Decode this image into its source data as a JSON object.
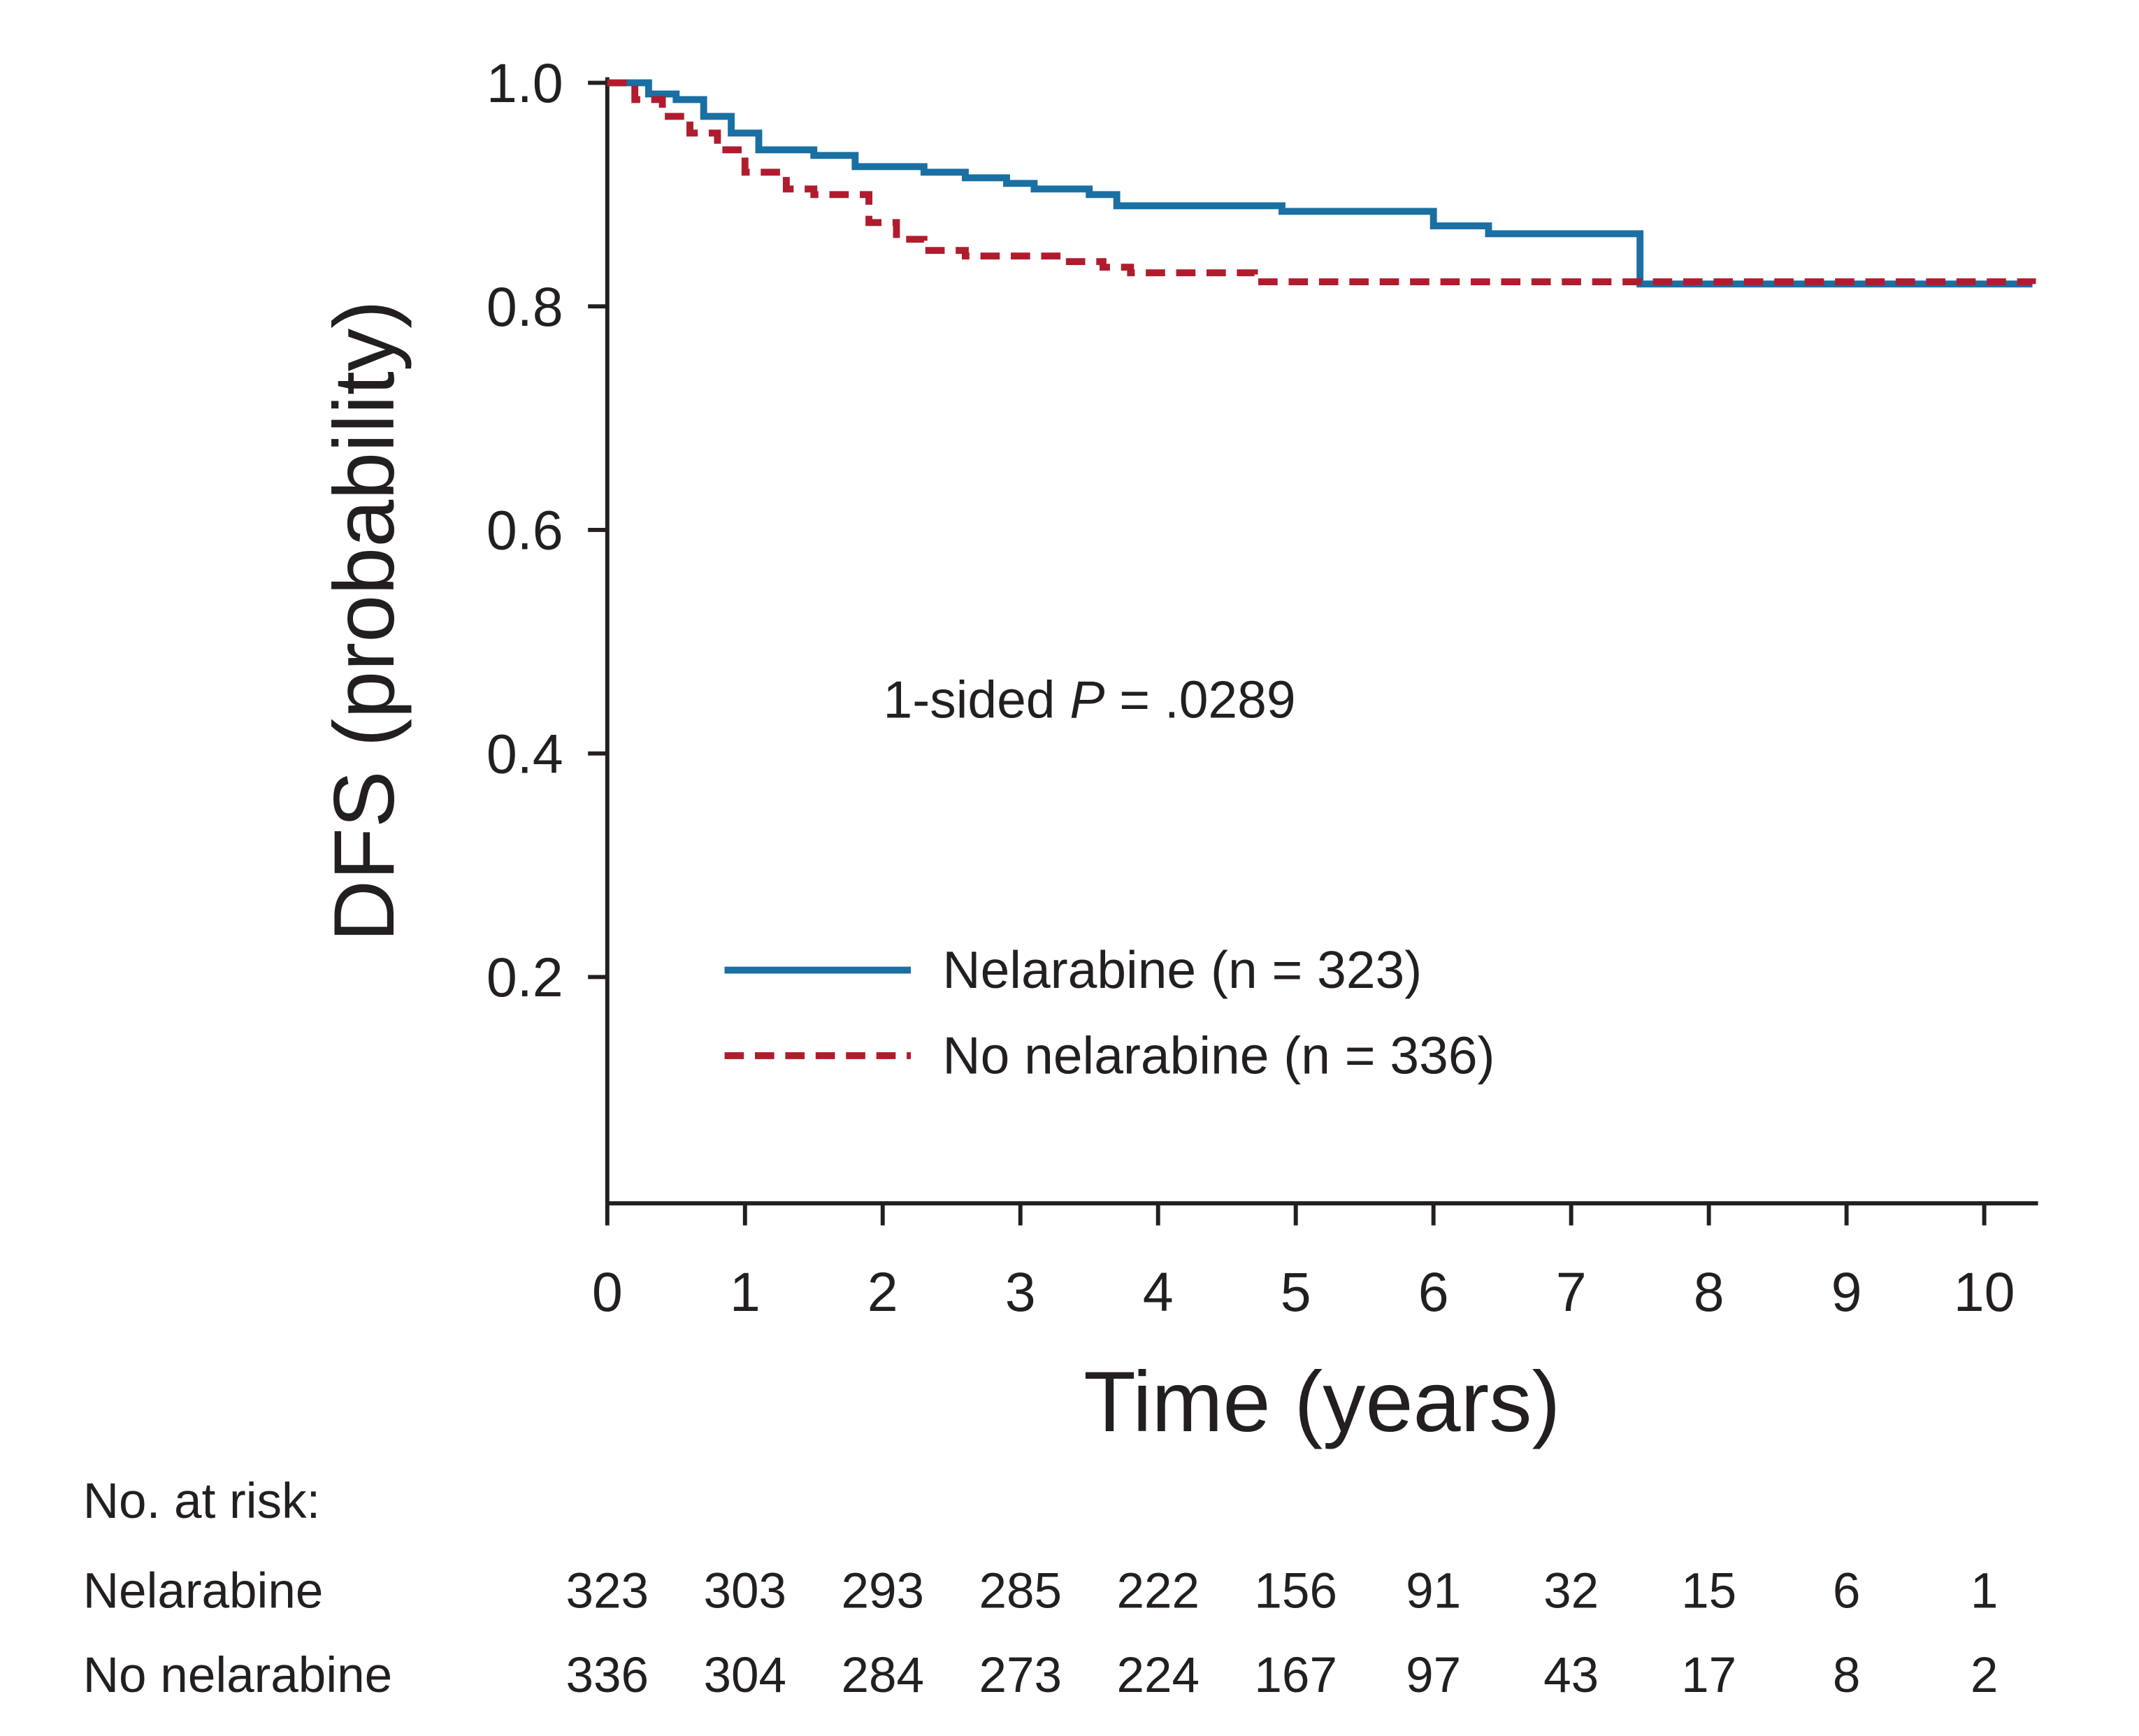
{
  "chart_data": {
    "type": "line",
    "subtype": "kaplan-meier step",
    "xlabel": "Time (years)",
    "ylabel": "DFS (probability)",
    "xlim": [
      0,
      10.35
    ],
    "ylim": [
      0,
      1.0
    ],
    "x_ticks": [
      0,
      1,
      2,
      3,
      4,
      5,
      6,
      7,
      8,
      9,
      10
    ],
    "x_tick_labels": [
      "0",
      "1",
      "2",
      "3",
      "4",
      "5",
      "6",
      "7",
      "8",
      "9",
      "10"
    ],
    "y_ticks": [
      0.2,
      0.4,
      0.6,
      0.8,
      1.0
    ],
    "y_tick_labels": [
      "0.2",
      "0.4",
      "0.6",
      "0.8",
      "1.0"
    ],
    "grid": false,
    "legend_position": "lower-center",
    "annotation": {
      "prefix": "1-sided ",
      "italic": "P",
      "suffix": " = .0289"
    },
    "series": [
      {
        "name": "Nelarabine (n = 323)",
        "color": "#1a6fa3",
        "style": "solid",
        "x": [
          0,
          0.3,
          0.5,
          0.7,
          0.9,
          1.1,
          1.5,
          1.8,
          2.3,
          2.6,
          2.9,
          3.1,
          3.5,
          3.7,
          4.9,
          6.0,
          6.4,
          7.5,
          10.35
        ],
        "y": [
          1.0,
          0.99,
          0.985,
          0.97,
          0.955,
          0.94,
          0.935,
          0.925,
          0.92,
          0.915,
          0.91,
          0.905,
          0.9,
          0.89,
          0.885,
          0.872,
          0.865,
          0.82,
          0.82
        ]
      },
      {
        "name": "No nelarabine (n = 336)",
        "color": "#b01c2e",
        "style": "dashed",
        "x": [
          0,
          0.2,
          0.4,
          0.6,
          0.8,
          1.0,
          1.3,
          1.5,
          1.9,
          2.1,
          2.3,
          2.6,
          3.3,
          3.6,
          3.8,
          4.7,
          10.35
        ],
        "y": [
          1.0,
          0.985,
          0.97,
          0.955,
          0.94,
          0.92,
          0.905,
          0.9,
          0.875,
          0.86,
          0.85,
          0.845,
          0.84,
          0.835,
          0.83,
          0.822,
          0.82
        ]
      }
    ],
    "risk_table": {
      "title": "No. at risk:",
      "rows": [
        {
          "label": "Nelarabine",
          "values": [
            "323",
            "303",
            "293",
            "285",
            "222",
            "156",
            "91",
            "32",
            "15",
            "6",
            "1"
          ]
        },
        {
          "label": "No nelarabine",
          "values": [
            "336",
            "304",
            "284",
            "273",
            "224",
            "167",
            "97",
            "43",
            "17",
            "8",
            "2"
          ]
        }
      ]
    }
  }
}
